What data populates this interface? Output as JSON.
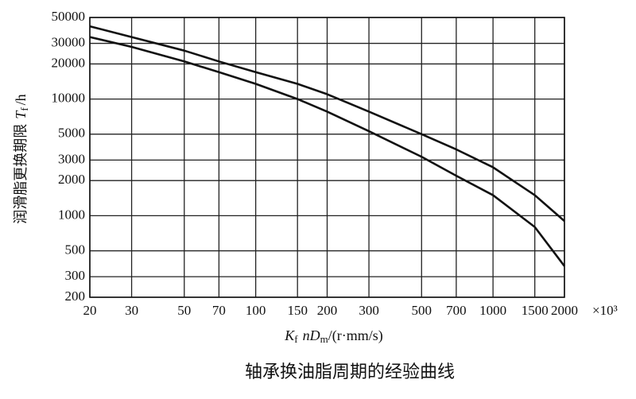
{
  "chart_data": {
    "type": "line",
    "title": "轴承换油脂周期的经验曲线",
    "x_label": [
      "K",
      "f",
      "nD",
      "m",
      "/(r·mm/s)"
    ],
    "x_unit": "×10³",
    "y_label": [
      "润滑脂更换期限",
      "T",
      "f",
      "/h"
    ],
    "x": [
      20,
      30,
      50,
      70,
      100,
      150,
      200,
      300,
      500,
      700,
      1000,
      1500,
      2000
    ],
    "series": [
      {
        "color": "#111111",
        "values": [
          42000,
          34000,
          26000,
          21000,
          17000,
          13500,
          11000,
          7800,
          5000,
          3700,
          2600,
          1500,
          900
        ]
      },
      {
        "color": "#111111",
        "values": [
          34000,
          28000,
          21000,
          17000,
          13500,
          10000,
          7800,
          5300,
          3200,
          2200,
          1500,
          800,
          370
        ]
      }
    ],
    "xlim": [
      20,
      2000
    ],
    "ylim": [
      200,
      50000
    ],
    "xticks": [
      20,
      30,
      50,
      70,
      100,
      150,
      200,
      300,
      500,
      700,
      1000,
      1500,
      2000
    ],
    "yticks": [
      200,
      300,
      500,
      1000,
      2000,
      3000,
      5000,
      10000,
      20000,
      30000,
      50000
    ],
    "xscale": "log",
    "yscale": "log",
    "grid": true
  }
}
